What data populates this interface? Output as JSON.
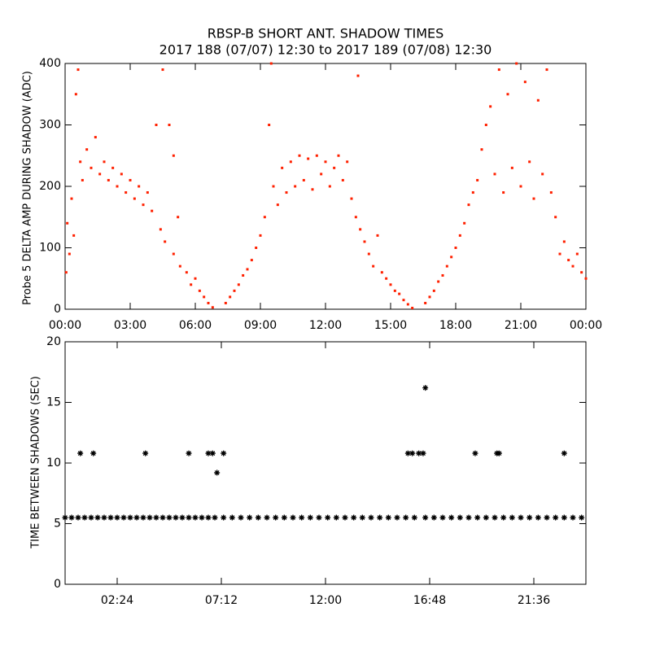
{
  "chart_data": [
    {
      "type": "scatter",
      "title": "RBSP-B SHORT ANT. SHADOW TIMES",
      "subtitle": "2017 188 (07/07) 12:30 to 2017 189 (07/08) 12:30",
      "y_label": "Probe 5 DELTA AMP DURING SHADOW (ADC)",
      "color": "#ff2000",
      "xlim": [
        0,
        24
      ],
      "ylim": [
        0,
        400
      ],
      "xticks": [
        {
          "value": 0,
          "label": "00:00"
        },
        {
          "value": 3,
          "label": "03:00"
        },
        {
          "value": 6,
          "label": "06:00"
        },
        {
          "value": 9,
          "label": "09:00"
        },
        {
          "value": 12,
          "label": "12:00"
        },
        {
          "value": 15,
          "label": "15:00"
        },
        {
          "value": 18,
          "label": "18:00"
        },
        {
          "value": 21,
          "label": "21:00"
        },
        {
          "value": 24,
          "label": "00:00"
        }
      ],
      "yticks": [
        0,
        100,
        200,
        300,
        400
      ],
      "x": [
        0.05,
        0.1,
        0.2,
        0.3,
        0.4,
        0.5,
        0.6,
        0.7,
        0.8,
        1.0,
        1.2,
        1.4,
        1.6,
        1.8,
        2.0,
        2.2,
        2.4,
        2.6,
        2.8,
        3.0,
        3.2,
        3.4,
        3.6,
        3.8,
        4.0,
        4.2,
        4.4,
        4.5,
        4.6,
        4.8,
        5.0,
        5.0,
        5.2,
        5.3,
        5.6,
        5.8,
        6.0,
        6.2,
        6.4,
        6.6,
        6.8,
        7.4,
        7.6,
        7.8,
        8.0,
        8.2,
        8.4,
        8.6,
        8.8,
        9.0,
        9.2,
        9.4,
        9.5,
        9.6,
        9.8,
        10.0,
        10.2,
        10.4,
        10.6,
        10.8,
        11.0,
        11.2,
        11.4,
        11.6,
        11.8,
        12.0,
        12.2,
        12.4,
        12.6,
        12.8,
        13.0,
        13.2,
        13.4,
        13.5,
        13.6,
        13.8,
        14.0,
        14.2,
        14.4,
        14.6,
        14.8,
        15.0,
        15.2,
        15.4,
        15.6,
        15.8,
        16.0,
        16.6,
        16.8,
        17.0,
        17.2,
        17.4,
        17.6,
        17.8,
        18.0,
        18.2,
        18.4,
        18.6,
        18.8,
        19.0,
        19.2,
        19.4,
        19.6,
        19.8,
        20.0,
        20.2,
        20.4,
        20.6,
        20.8,
        21.0,
        21.2,
        21.4,
        21.6,
        21.8,
        22.0,
        22.2,
        22.4,
        22.6,
        22.8,
        23.0,
        23.2,
        23.4,
        23.6,
        23.8,
        24.0
      ],
      "y": [
        60,
        140,
        90,
        180,
        120,
        350,
        390,
        240,
        210,
        260,
        230,
        280,
        220,
        240,
        210,
        230,
        200,
        220,
        190,
        210,
        180,
        200,
        170,
        190,
        160,
        300,
        130,
        390,
        110,
        300,
        250,
        90,
        150,
        70,
        60,
        40,
        50,
        30,
        20,
        10,
        3,
        10,
        20,
        30,
        40,
        55,
        65,
        80,
        100,
        120,
        150,
        300,
        400,
        200,
        170,
        230,
        190,
        240,
        200,
        250,
        210,
        245,
        195,
        250,
        220,
        240,
        200,
        230,
        250,
        210,
        240,
        180,
        150,
        380,
        130,
        110,
        90,
        70,
        120,
        60,
        50,
        40,
        30,
        25,
        15,
        8,
        2,
        10,
        20,
        30,
        45,
        55,
        70,
        85,
        100,
        120,
        140,
        170,
        190,
        210,
        260,
        300,
        330,
        220,
        390,
        190,
        350,
        230,
        400,
        200,
        370,
        240,
        180,
        340,
        220,
        390,
        190,
        150,
        90,
        110,
        80,
        70,
        90,
        60,
        50
      ]
    },
    {
      "type": "scatter",
      "y_label": "TIME BETWEEN SHADOWS (SEC)",
      "color": "#000000",
      "xlim": [
        0,
        24
      ],
      "ylim": [
        0,
        20
      ],
      "xticks": [
        {
          "value": 2.4,
          "label": "02:24"
        },
        {
          "value": 7.2,
          "label": "07:12"
        },
        {
          "value": 12,
          "label": "12:00"
        },
        {
          "value": 16.8,
          "label": "16:48"
        },
        {
          "value": 21.6,
          "label": "21:36"
        }
      ],
      "yticks": [
        0,
        5,
        10,
        15,
        20
      ],
      "x": [
        0,
        0.3,
        0.6,
        0.9,
        1.2,
        1.5,
        1.8,
        2.1,
        2.4,
        2.7,
        3.0,
        3.3,
        3.6,
        3.9,
        4.2,
        4.5,
        4.8,
        5.1,
        5.4,
        5.7,
        6.0,
        6.3,
        6.6,
        6.9,
        7.3,
        7.7,
        8.1,
        8.5,
        8.9,
        9.3,
        9.7,
        10.1,
        10.5,
        10.9,
        11.3,
        11.7,
        12.1,
        12.5,
        12.9,
        13.3,
        13.7,
        14.1,
        14.5,
        14.9,
        15.3,
        15.7,
        16.1,
        16.6,
        17.0,
        17.4,
        17.8,
        18.2,
        18.6,
        19.0,
        19.4,
        19.8,
        20.2,
        20.6,
        21.0,
        21.4,
        21.8,
        22.2,
        22.6,
        23.0,
        23.4,
        23.8,
        0.7,
        1.3,
        3.7,
        5.7,
        6.6,
        6.8,
        7.0,
        7.3,
        15.8,
        16.0,
        16.3,
        16.5,
        16.6,
        18.9,
        19.9,
        20.0,
        23.0
      ],
      "y": [
        5.5,
        5.5,
        5.5,
        5.5,
        5.5,
        5.5,
        5.5,
        5.5,
        5.5,
        5.5,
        5.5,
        5.5,
        5.5,
        5.5,
        5.5,
        5.5,
        5.5,
        5.5,
        5.5,
        5.5,
        5.5,
        5.5,
        5.5,
        5.5,
        5.5,
        5.5,
        5.5,
        5.5,
        5.5,
        5.5,
        5.5,
        5.5,
        5.5,
        5.5,
        5.5,
        5.5,
        5.5,
        5.5,
        5.5,
        5.5,
        5.5,
        5.5,
        5.5,
        5.5,
        5.5,
        5.5,
        5.5,
        5.5,
        5.5,
        5.5,
        5.5,
        5.5,
        5.5,
        5.5,
        5.5,
        5.5,
        5.5,
        5.5,
        5.5,
        5.5,
        5.5,
        5.5,
        5.5,
        5.5,
        5.5,
        5.5,
        10.8,
        10.8,
        10.8,
        10.8,
        10.8,
        10.8,
        9.2,
        10.8,
        10.8,
        10.8,
        10.8,
        10.8,
        16.2,
        10.8,
        10.8,
        10.8,
        10.8
      ]
    }
  ]
}
